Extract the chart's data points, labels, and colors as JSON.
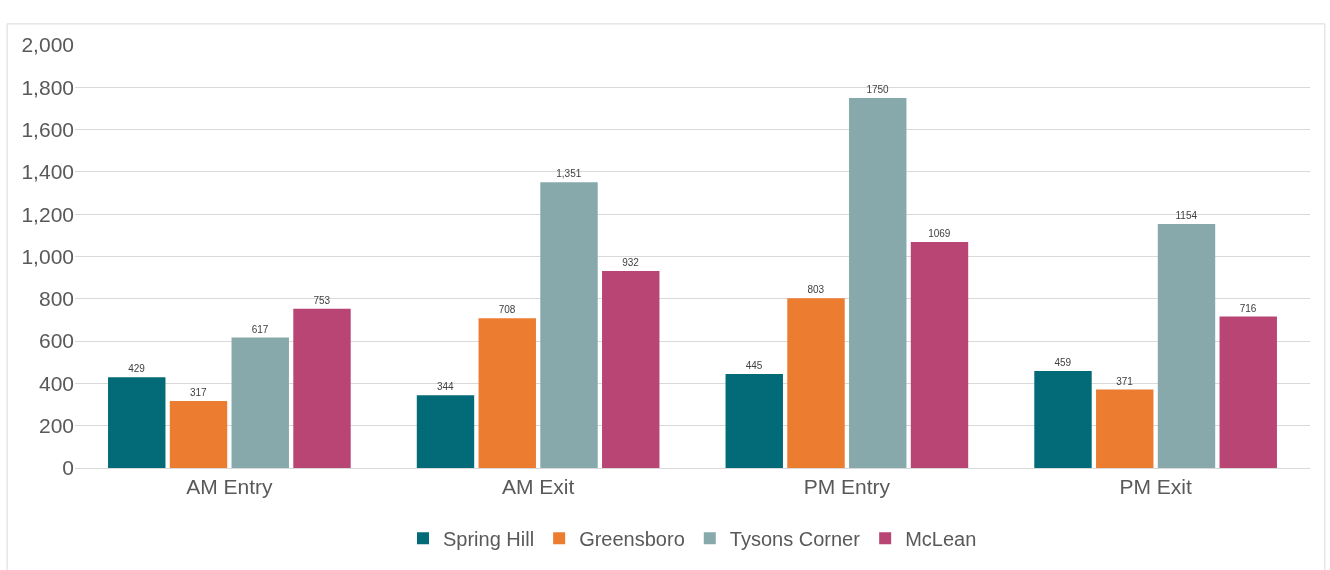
{
  "chart_data": {
    "type": "bar",
    "categories": [
      "AM Entry",
      "AM Exit",
      "PM Entry",
      "PM Exit"
    ],
    "series": [
      {
        "name": "Spring Hill",
        "color": "#036a78",
        "values": [
          429,
          344,
          445,
          459
        ],
        "value_labels": [
          "429",
          "344",
          "445",
          "459"
        ]
      },
      {
        "name": "Greensboro",
        "color": "#ec7c30",
        "values": [
          317,
          708,
          803,
          371
        ],
        "value_labels": [
          "317",
          "708",
          "803",
          "371"
        ]
      },
      {
        "name": "Tysons Corner",
        "color": "#87a9ac",
        "values": [
          617,
          1351,
          1750,
          1154
        ],
        "value_labels": [
          "617",
          "1,351",
          "1750",
          "1154"
        ]
      },
      {
        "name": "McLean",
        "color": "#b94574",
        "values": [
          753,
          932,
          1069,
          716
        ],
        "value_labels": [
          "753",
          "932",
          "1069",
          "716"
        ]
      }
    ],
    "ylim": [
      0,
      2000
    ],
    "yticks": [
      {
        "value": 0,
        "label": "0"
      },
      {
        "value": 200,
        "label": "200"
      },
      {
        "value": 400,
        "label": "400"
      },
      {
        "value": 600,
        "label": "600"
      },
      {
        "value": 800,
        "label": "800"
      },
      {
        "value": 1000,
        "label": "1,000"
      },
      {
        "value": 1200,
        "label": "1,200"
      },
      {
        "value": 1400,
        "label": "1,400"
      },
      {
        "value": 1600,
        "label": "1,600"
      },
      {
        "value": 1800,
        "label": "1,800"
      },
      {
        "value": 2000,
        "label": "2,000"
      }
    ],
    "grid": "y",
    "legend": "bottom"
  }
}
